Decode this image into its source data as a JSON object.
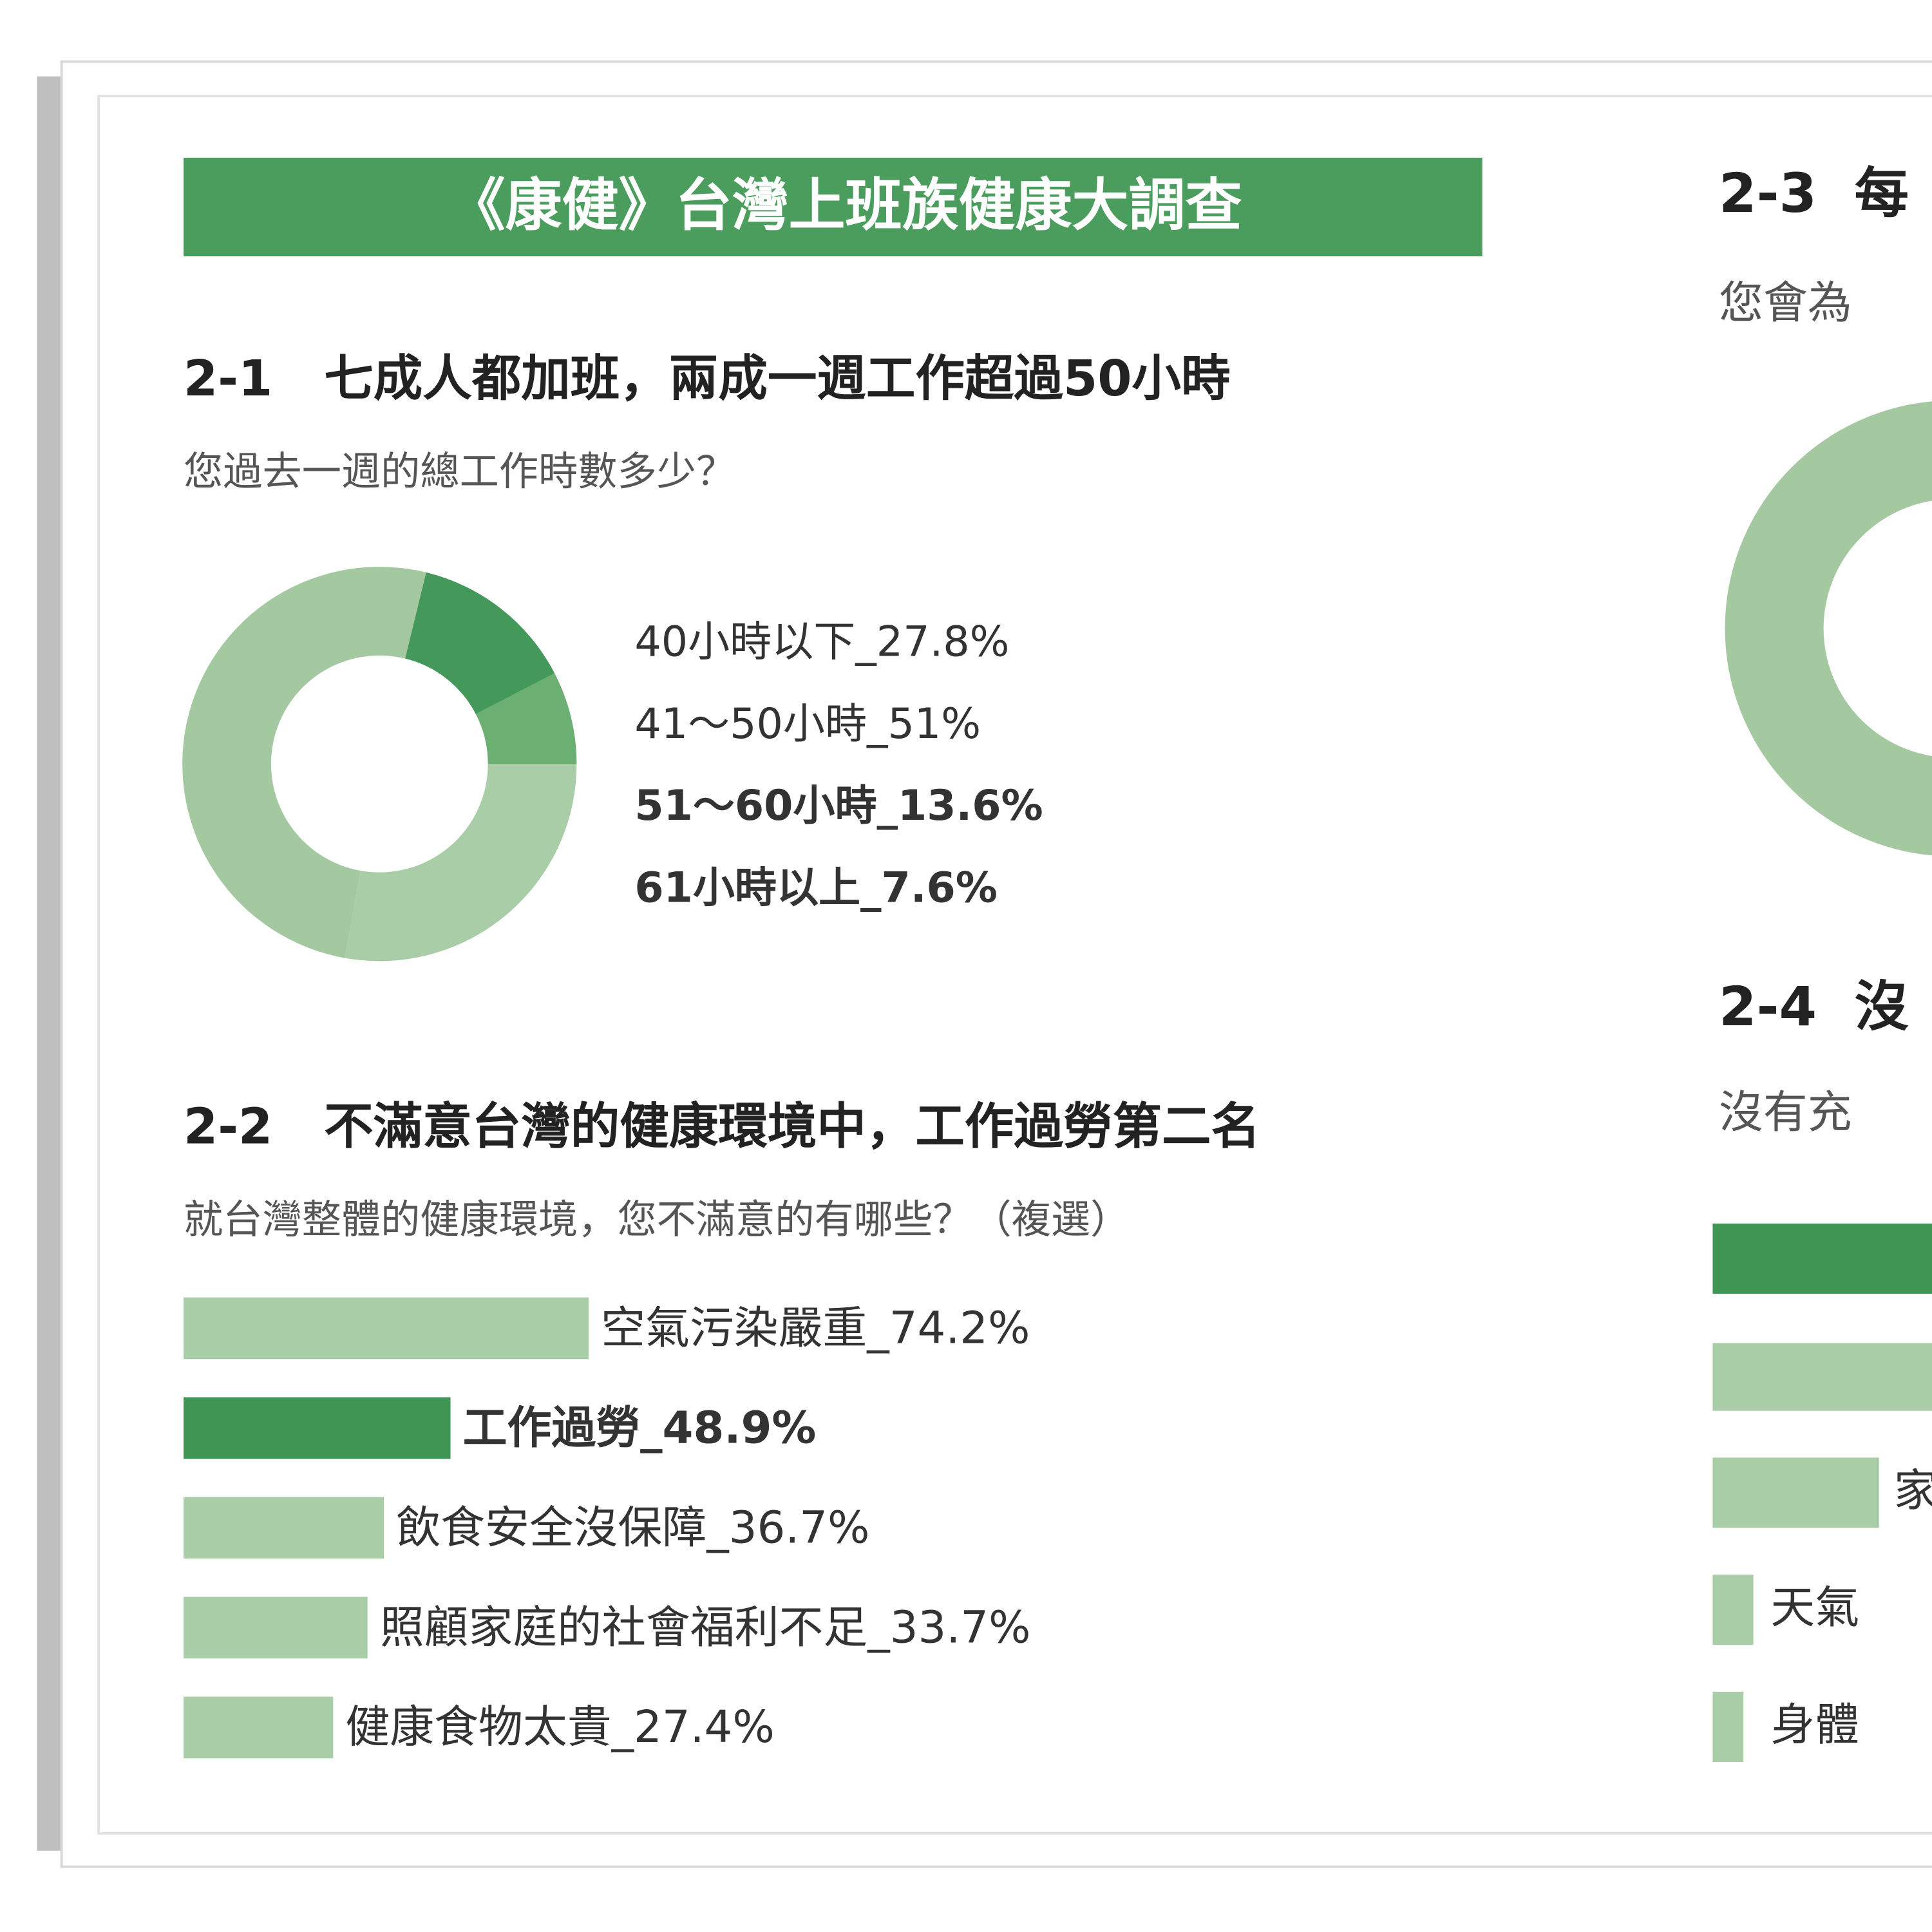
{
  "header": {
    "title": "《康健》台灣上班族健康大調查"
  },
  "chart_data": [
    {
      "type": "donut",
      "title": "2-1   七成人都加班，兩成一週工作超過50小時",
      "subtitle": "您過去一週的總工作時數多少？",
      "categories": [
        "40小時以下_27.8%",
        "41～50小時_51%",
        "51～60小時_13.6%",
        "61小時以上_7.6%"
      ],
      "values": [
        27.8,
        51,
        13.6,
        7.6
      ],
      "colors": [
        "#a9cda6",
        "#a4c9a1",
        "#43985a",
        "#6caf72"
      ],
      "emphasis": [
        false,
        false,
        true,
        true
      ]
    },
    {
      "type": "bar",
      "orientation": "horizontal",
      "title": "2-2   不滿意台灣的健康環境中，工作過勞第二名",
      "subtitle": "就台灣整體的健康環境，您不滿意的有哪些？（複選）",
      "categories": [
        "空氣污染嚴重_74.2%",
        "工作過勞_48.9%",
        "飲食安全沒保障_36.7%",
        "照顧家庭的社會福利不足_33.7%",
        "健康食物太貴_27.4%"
      ],
      "values": [
        74.2,
        48.9,
        36.7,
        33.7,
        27.4
      ],
      "colors": [
        "#a9cda6",
        "#3f9553",
        "#a9cda6",
        "#a9cda6",
        "#a9cda6"
      ],
      "emphasis": [
        false,
        true,
        false,
        false,
        false
      ],
      "xlim": [
        0,
        100
      ]
    }
  ],
  "side_panel": {
    "sections": [
      {
        "title": "2-3  每",
        "subtitle": "您會為"
      },
      {
        "title": "2-4  沒",
        "subtitle": "沒有充",
        "labels": [
          "家",
          "天氣",
          "身體"
        ]
      }
    ]
  }
}
